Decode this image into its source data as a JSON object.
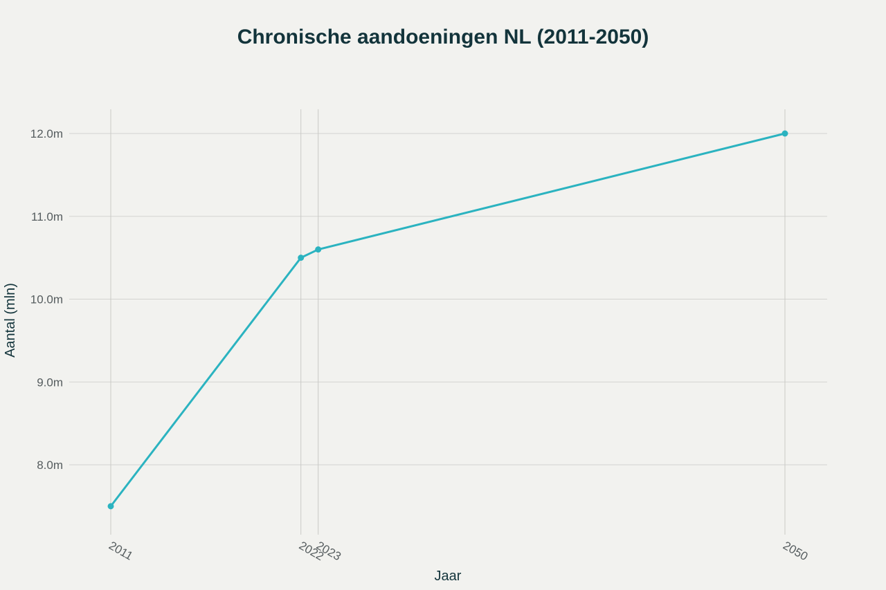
{
  "colors": {
    "background": "#f2f2ef",
    "series": "#2bb3c0",
    "title": "#13343b",
    "tick": "#555c5e",
    "grid": "#d3d3d0"
  },
  "chart_data": {
    "type": "line",
    "title": "Chronische aandoeningen NL (2011-2050)",
    "xlabel": "Jaar",
    "ylabel": "Aantal (mln)",
    "x": [
      2011,
      2022,
      2023,
      2050
    ],
    "x_tick_labels": [
      "2011",
      "2022",
      "2023",
      "2050"
    ],
    "y_ticks": [
      8.0,
      9.0,
      10.0,
      11.0,
      12.0
    ],
    "y_tick_labels": [
      "8.0m",
      "9.0m",
      "10.0m",
      "11.0m",
      "12.0m"
    ],
    "ylim": [
      7.2,
      12.3
    ],
    "grid": true,
    "series": [
      {
        "values": [
          7.5,
          10.5,
          10.6,
          12.0
        ]
      }
    ]
  }
}
